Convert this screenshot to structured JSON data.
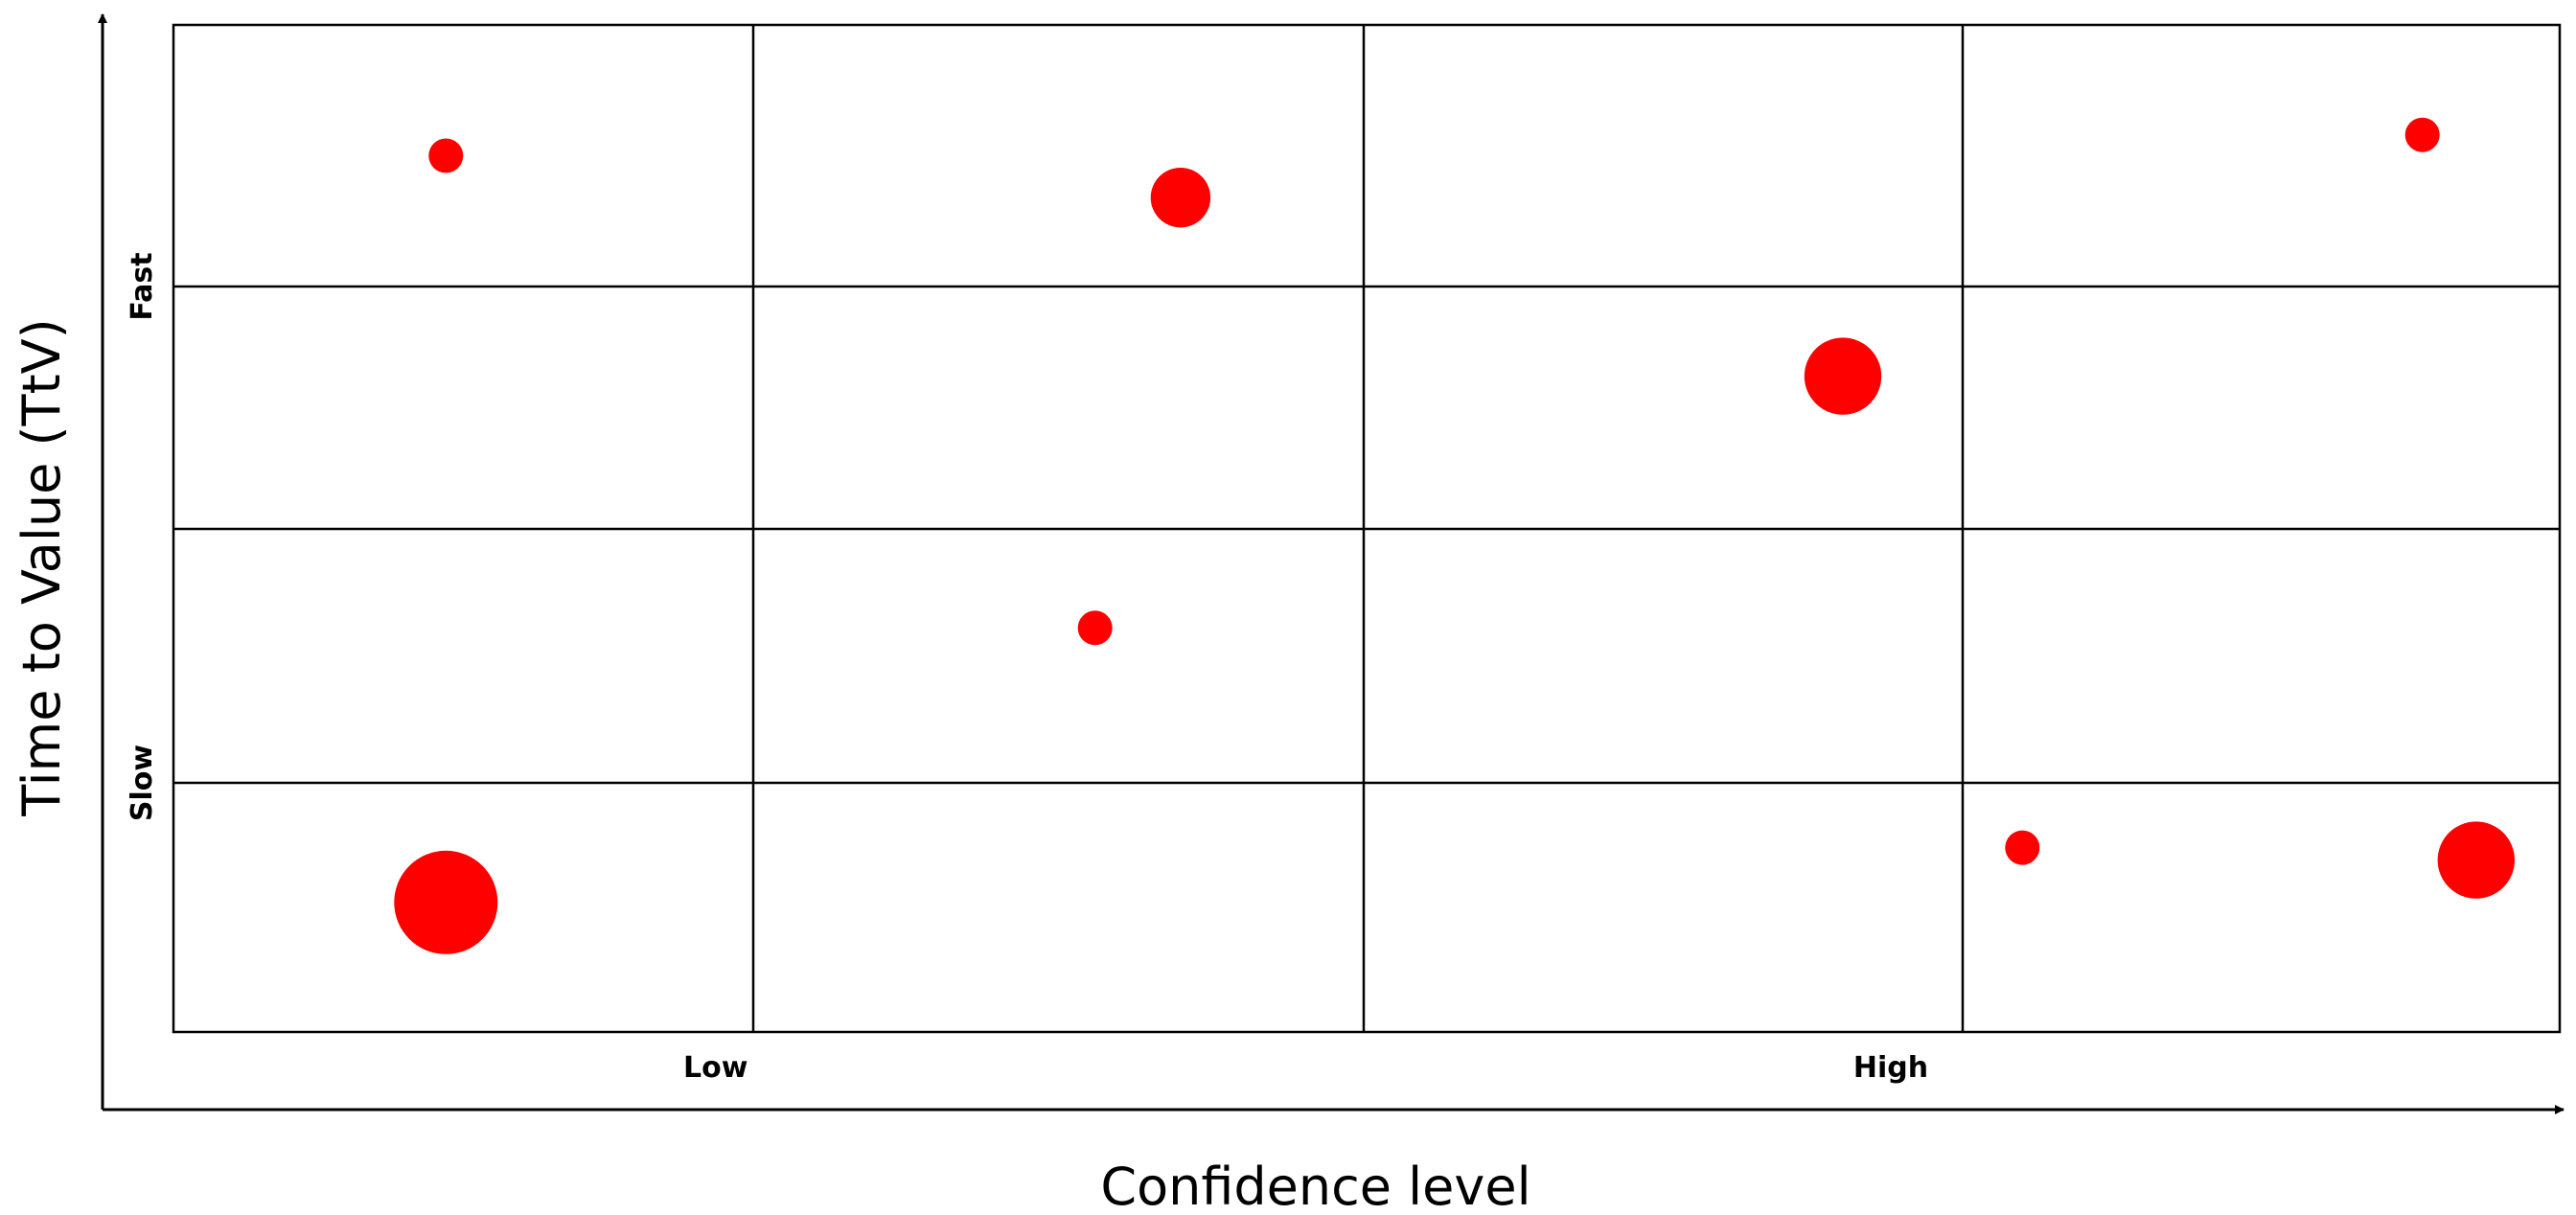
{
  "chart_data": {
    "type": "scatter",
    "xlabel": "Confidence level",
    "ylabel": "Time to Value (TtV)",
    "x_tick_labels": [
      {
        "text": "Low",
        "at": 0.935
      },
      {
        "text": "High",
        "at": 2.88
      }
    ],
    "y_tick_labels": [
      {
        "text": "Fast",
        "at": 3.0
      },
      {
        "text": "Slow",
        "at": 1.0
      }
    ],
    "xlim": [
      0,
      4
    ],
    "ylim": [
      0,
      4
    ],
    "grid": true,
    "legend": "none",
    "marker_color": "#ff0000",
    "points": [
      {
        "x": 0.47,
        "y": 3.5,
        "size": 1
      },
      {
        "x": 1.7,
        "y": 3.34,
        "size": 3
      },
      {
        "x": 3.77,
        "y": 3.58,
        "size": 1
      },
      {
        "x": 2.8,
        "y": 2.63,
        "size": 5
      },
      {
        "x": 1.56,
        "y": 1.61,
        "size": 1
      },
      {
        "x": 0.47,
        "y": 0.52,
        "size": 9
      },
      {
        "x": 3.1,
        "y": 0.74,
        "size": 1
      },
      {
        "x": 3.86,
        "y": 0.69,
        "size": 5
      }
    ]
  }
}
